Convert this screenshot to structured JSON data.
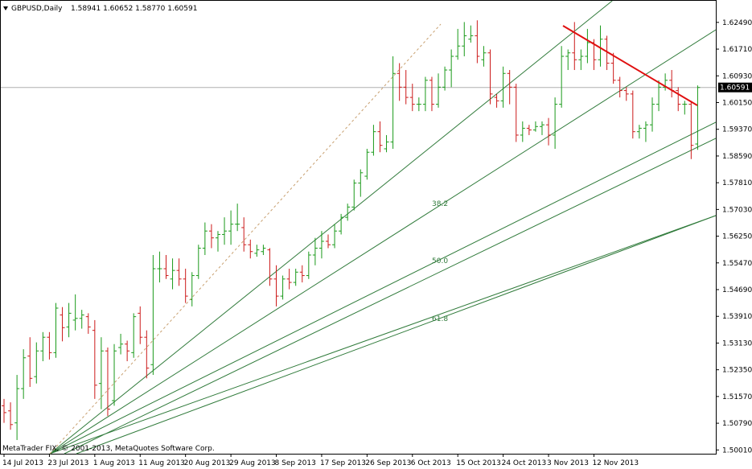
{
  "header": {
    "symbol_label": "GBPUSD,Daily",
    "ohlc_text": "1.58941 1.60652 1.58770 1.60591"
  },
  "footer": {
    "copyright": "MetaTrader FIX, © 2001-2013, MetaQuotes Software Corp."
  },
  "chart_data": {
    "type": "ohlc",
    "symbol": "GBPUSD",
    "timeframe": "Daily",
    "current_price": 1.60591,
    "price_label": "1.60591",
    "ylim": [
      1.499,
      1.6312
    ],
    "y_ticks": [
      {
        "value": 1.6249,
        "label": "1.62490"
      },
      {
        "value": 1.6171,
        "label": "1.61710"
      },
      {
        "value": 1.6093,
        "label": "1.60930"
      },
      {
        "value": 1.6015,
        "label": "1.60150"
      },
      {
        "value": 1.5937,
        "label": "1.59370"
      },
      {
        "value": 1.5859,
        "label": "1.58590"
      },
      {
        "value": 1.5781,
        "label": "1.57810"
      },
      {
        "value": 1.5703,
        "label": "1.57030"
      },
      {
        "value": 1.5625,
        "label": "1.56250"
      },
      {
        "value": 1.5547,
        "label": "1.55470"
      },
      {
        "value": 1.5469,
        "label": "1.54690"
      },
      {
        "value": 1.5391,
        "label": "1.53910"
      },
      {
        "value": 1.5313,
        "label": "1.53130"
      },
      {
        "value": 1.5235,
        "label": "1.52350"
      },
      {
        "value": 1.5157,
        "label": "1.51570"
      },
      {
        "value": 1.5079,
        "label": "1.50790"
      },
      {
        "value": 1.5001,
        "label": "1.50010"
      }
    ],
    "x_labels": [
      {
        "index": 0,
        "label": "14 Jul 2013"
      },
      {
        "index": 7,
        "label": "23 Jul 2013"
      },
      {
        "index": 14,
        "label": "1 Aug 2013"
      },
      {
        "index": 21,
        "label": "11 Aug 2013"
      },
      {
        "index": 28,
        "label": "20 Aug 2013"
      },
      {
        "index": 35,
        "label": "29 Aug 2013"
      },
      {
        "index": 42,
        "label": "8 Sep 2013"
      },
      {
        "index": 49,
        "label": "17 Sep 2013"
      },
      {
        "index": 56,
        "label": "26 Sep 2013"
      },
      {
        "index": 63,
        "label": "6 Oct 2013"
      },
      {
        "index": 70,
        "label": "15 Oct 2013"
      },
      {
        "index": 77,
        "label": "24 Oct 2013"
      },
      {
        "index": 84,
        "label": "3 Nov 2013"
      },
      {
        "index": 91,
        "label": "12 Nov 2013"
      }
    ],
    "bars": [
      [
        1.513,
        1.515,
        1.508,
        1.511
      ],
      [
        1.5115,
        1.514,
        1.506,
        1.5075
      ],
      [
        1.508,
        1.522,
        1.503,
        1.518
      ],
      [
        1.518,
        1.5295,
        1.515,
        1.527
      ],
      [
        1.5275,
        1.533,
        1.5185,
        1.521
      ],
      [
        1.5215,
        1.5315,
        1.5195,
        1.529
      ],
      [
        1.529,
        1.5345,
        1.526,
        1.533
      ],
      [
        1.533,
        1.5345,
        1.5265,
        1.5285
      ],
      [
        1.5285,
        1.543,
        1.527,
        1.5415
      ],
      [
        1.5395,
        1.5418,
        1.5318,
        1.5358
      ],
      [
        1.536,
        1.543,
        1.533,
        1.54
      ],
      [
        1.538,
        1.5455,
        1.535,
        1.5385
      ],
      [
        1.5385,
        1.541,
        1.5355,
        1.5395
      ],
      [
        1.539,
        1.54,
        1.534,
        1.536
      ],
      [
        1.535,
        1.538,
        1.515,
        1.519
      ],
      [
        1.5195,
        1.533,
        1.512,
        1.529
      ],
      [
        1.529,
        1.53,
        1.51,
        1.512
      ],
      [
        1.5145,
        1.531,
        1.513,
        1.529
      ],
      [
        1.53,
        1.534,
        1.528,
        1.531
      ],
      [
        1.531,
        1.532,
        1.526,
        1.529
      ],
      [
        1.5285,
        1.54,
        1.527,
        1.539
      ],
      [
        1.54,
        1.542,
        1.531,
        1.533
      ],
      [
        1.533,
        1.535,
        1.521,
        1.524
      ],
      [
        1.525,
        1.557,
        1.522,
        1.553
      ],
      [
        1.553,
        1.558,
        1.549,
        1.553
      ],
      [
        1.553,
        1.557,
        1.55,
        1.551
      ],
      [
        1.55,
        1.556,
        1.547,
        1.5525
      ],
      [
        1.5525,
        1.556,
        1.548,
        1.55
      ],
      [
        1.55,
        1.553,
        1.543,
        1.545
      ],
      [
        1.544,
        1.552,
        1.542,
        1.551
      ],
      [
        1.551,
        1.56,
        1.55,
        1.559
      ],
      [
        1.559,
        1.5665,
        1.557,
        1.564
      ],
      [
        1.564,
        1.566,
        1.559,
        1.562
      ],
      [
        1.562,
        1.564,
        1.558,
        1.563
      ],
      [
        1.563,
        1.568,
        1.56,
        1.564
      ],
      [
        1.564,
        1.57,
        1.56,
        1.566
      ],
      [
        1.566,
        1.572,
        1.564,
        1.566
      ],
      [
        1.565,
        1.568,
        1.558,
        1.56
      ],
      [
        1.56,
        1.5615,
        1.556,
        1.558
      ],
      [
        1.5575,
        1.56,
        1.5565,
        1.5585
      ],
      [
        1.558,
        1.56,
        1.557,
        1.559
      ],
      [
        1.5585,
        1.559,
        1.548,
        1.55
      ],
      [
        1.55,
        1.554,
        1.542,
        1.545
      ],
      [
        1.545,
        1.551,
        1.544,
        1.55
      ],
      [
        1.55,
        1.553,
        1.547,
        1.549
      ],
      [
        1.549,
        1.553,
        1.548,
        1.552
      ],
      [
        1.552,
        1.554,
        1.549,
        1.551
      ],
      [
        1.551,
        1.558,
        1.55,
        1.557
      ],
      [
        1.557,
        1.562,
        1.554,
        1.559
      ],
      [
        1.559,
        1.564,
        1.556,
        1.561
      ],
      [
        1.561,
        1.563,
        1.559,
        1.56
      ],
      [
        1.56,
        1.566,
        1.559,
        1.564
      ],
      [
        1.564,
        1.569,
        1.563,
        1.568
      ],
      [
        1.568,
        1.572,
        1.567,
        1.571
      ],
      [
        1.571,
        1.579,
        1.57,
        1.578
      ],
      [
        1.578,
        1.582,
        1.574,
        1.581
      ],
      [
        1.58,
        1.588,
        1.579,
        1.587
      ],
      [
        1.587,
        1.595,
        1.586,
        1.593
      ],
      [
        1.593,
        1.596,
        1.587,
        1.589
      ],
      [
        1.588,
        1.592,
        1.587,
        1.59
      ],
      [
        1.59,
        1.615,
        1.588,
        1.61
      ],
      [
        1.61,
        1.613,
        1.602,
        1.606
      ],
      [
        1.606,
        1.611,
        1.601,
        1.603
      ],
      [
        1.603,
        1.607,
        1.599,
        1.601
      ],
      [
        1.601,
        1.603,
        1.599,
        1.601
      ],
      [
        1.601,
        1.609,
        1.599,
        1.608
      ],
      [
        1.608,
        1.609,
        1.599,
        1.601
      ],
      [
        1.601,
        1.61,
        1.6,
        1.606
      ],
      [
        1.606,
        1.612,
        1.605,
        1.611
      ],
      [
        1.611,
        1.617,
        1.606,
        1.615
      ],
      [
        1.615,
        1.623,
        1.614,
        1.618
      ],
      [
        1.618,
        1.625,
        1.615,
        1.621
      ],
      [
        1.62,
        1.624,
        1.619,
        1.621
      ],
      [
        1.621,
        1.6255,
        1.613,
        1.615
      ],
      [
        1.614,
        1.618,
        1.612,
        1.616
      ],
      [
        1.616,
        1.617,
        1.601,
        1.604
      ],
      [
        1.603,
        1.604,
        1.6,
        1.602
      ],
      [
        1.602,
        1.612,
        1.6,
        1.61
      ],
      [
        1.61,
        1.611,
        1.601,
        1.606
      ],
      [
        1.606,
        1.607,
        1.59,
        1.592
      ],
      [
        1.592,
        1.596,
        1.59,
        1.594
      ],
      [
        1.594,
        1.595,
        1.592,
        1.5935
      ],
      [
        1.5935,
        1.596,
        1.593,
        1.5945
      ],
      [
        1.5945,
        1.596,
        1.592,
        1.595
      ],
      [
        1.595,
        1.597,
        1.589,
        1.592
      ],
      [
        1.592,
        1.603,
        1.588,
        1.601
      ],
      [
        1.601,
        1.618,
        1.6,
        1.615
      ],
      [
        1.615,
        1.617,
        1.611,
        1.616
      ],
      [
        1.616,
        1.625,
        1.611,
        1.614
      ],
      [
        1.614,
        1.617,
        1.611,
        1.615
      ],
      [
        1.615,
        1.623,
        1.613,
        1.619
      ],
      [
        1.619,
        1.62,
        1.611,
        1.614
      ],
      [
        1.614,
        1.624,
        1.612,
        1.62
      ],
      [
        1.62,
        1.621,
        1.611,
        1.613
      ],
      [
        1.613,
        1.616,
        1.607,
        1.608
      ],
      [
        1.608,
        1.609,
        1.603,
        1.605
      ],
      [
        1.605,
        1.606,
        1.602,
        1.604
      ],
      [
        1.604,
        1.605,
        1.591,
        1.593
      ],
      [
        1.593,
        1.595,
        1.591,
        1.594
      ],
      [
        1.594,
        1.596,
        1.59,
        1.595
      ],
      [
        1.595,
        1.603,
        1.593,
        1.601
      ],
      [
        1.601,
        1.608,
        1.599,
        1.606
      ],
      [
        1.606,
        1.61,
        1.605,
        1.608
      ],
      [
        1.608,
        1.611,
        1.603,
        1.605
      ],
      [
        1.605,
        1.606,
        1.599,
        1.601
      ],
      [
        1.601,
        1.602,
        1.598,
        1.601
      ],
      [
        1.601,
        1.602,
        1.585,
        1.589
      ],
      [
        1.5894,
        1.6065,
        1.5877,
        1.6059
      ]
    ],
    "fan_labels": [
      "38.2",
      "50.0",
      "61.8"
    ],
    "colors": {
      "bull": "#1a9a1a",
      "bear": "#cc1a1a",
      "fan_line": "#2f7a3a",
      "trendline": "#e01010",
      "dashed_channel": "#c8a070",
      "price_line": "#b0b0b0"
    }
  }
}
